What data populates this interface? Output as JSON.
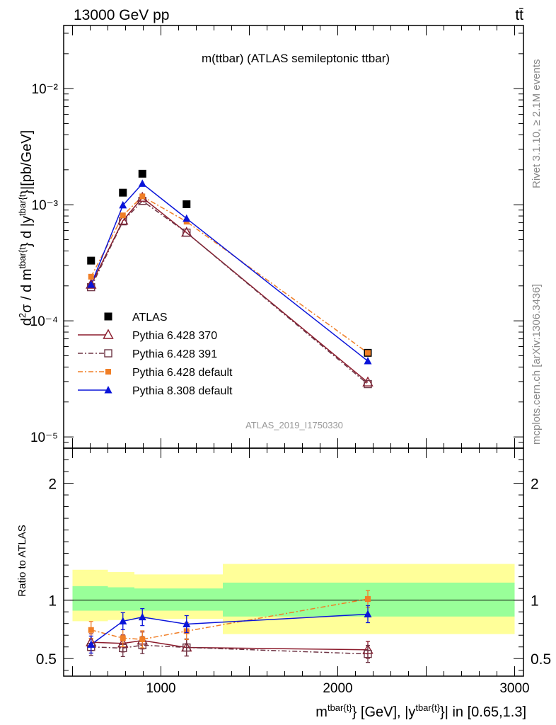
{
  "header": {
    "left": "13000 GeV pp",
    "right": "tt̄"
  },
  "side_texts": {
    "rivet": "Rivet 3.1.10, ≥ 2.1M events",
    "mcplots": "mcplots.cern.ch [arXiv:1306.3436]"
  },
  "chart_data": [
    {
      "type": "scatter",
      "title": "m(ttbar) (ATLAS semileptonic ttbar)",
      "analysis_label": "ATLAS_2019_I1750330",
      "ylabel": "d²σ / d m^{tbar{t}} d |y^{tbar{t}}|[pb/GeV]",
      "ylog": true,
      "ylim": [
        8e-06,
        0.035
      ],
      "xlim": [
        450,
        3050
      ],
      "y_ticks": [
        "10⁻⁵",
        "10⁻⁴",
        "10⁻³",
        "10⁻²"
      ],
      "legend_position": "center-left",
      "x": [
        605,
        785,
        895,
        1145,
        2170
      ],
      "series": [
        {
          "name": "ATLAS",
          "color": "#000000",
          "marker": "square-filled",
          "line": "none",
          "values": [
            0.00033,
            0.00127,
            0.00185,
            0.00101,
            5.3e-05
          ]
        },
        {
          "name": "Pythia 6.428 370",
          "color": "#8b1a2b",
          "marker": "triangle-open",
          "line": "solid",
          "values": [
            0.000205,
            0.00073,
            0.00115,
            0.000575,
            2.95e-05
          ]
        },
        {
          "name": "Pythia 6.428 391",
          "color": "#6e3545",
          "marker": "square-open",
          "line": "dashdot",
          "values": [
            0.000195,
            0.00072,
            0.00108,
            0.000575,
            2.85e-05
          ]
        },
        {
          "name": "Pythia 6.428 default",
          "color": "#f07e26",
          "marker": "square-filled-small",
          "line": "dashdot",
          "values": [
            0.00024,
            0.00081,
            0.00118,
            0.000715,
            5.3e-05
          ]
        },
        {
          "name": "Pythia 8.308 default",
          "color": "#0a14d9",
          "marker": "triangle-filled",
          "line": "solid",
          "values": [
            0.000205,
            0.00099,
            0.00152,
            0.00076,
            4.5e-05
          ]
        }
      ]
    },
    {
      "type": "scatter",
      "ylabel": "Ratio to ATLAS",
      "xlabel": "m^{tbar{t}} [GeV], |y^{tbar{t}}| in [0.65,1.3]",
      "xlim": [
        450,
        3050
      ],
      "ylim": [
        0.35,
        2.3
      ],
      "x_ticks": [
        "1000",
        "2000",
        "3000"
      ],
      "y_ticks": [
        "0.5",
        "1",
        "2"
      ],
      "bands": {
        "bins": [
          [
            500,
            700
          ],
          [
            700,
            850
          ],
          [
            850,
            1350
          ],
          [
            1350,
            3000
          ]
        ],
        "yellow": [
          [
            0.82,
            1.26
          ],
          [
            0.83,
            1.24
          ],
          [
            0.84,
            1.22
          ],
          [
            0.71,
            1.31
          ]
        ],
        "green": [
          [
            0.91,
            1.12
          ],
          [
            0.91,
            1.11
          ],
          [
            0.91,
            1.1
          ],
          [
            0.86,
            1.15
          ]
        ]
      },
      "x": [
        605,
        785,
        895,
        1145,
        2170
      ],
      "series": [
        {
          "name": "Pythia 6.428 370",
          "color": "#8b1a2b",
          "values": [
            0.64,
            0.63,
            0.655,
            0.595,
            0.575
          ]
        },
        {
          "name": "Pythia 6.428 391",
          "color": "#6e3545",
          "values": [
            0.6,
            0.59,
            0.615,
            0.595,
            0.54
          ]
        },
        {
          "name": "Pythia 6.428 default",
          "color": "#f07e26",
          "values": [
            0.745,
            0.675,
            0.665,
            0.735,
            1.01
          ]
        },
        {
          "name": "Pythia 8.308 default",
          "color": "#0a14d9",
          "values": [
            0.62,
            0.82,
            0.855,
            0.795,
            0.88
          ]
        }
      ]
    }
  ]
}
